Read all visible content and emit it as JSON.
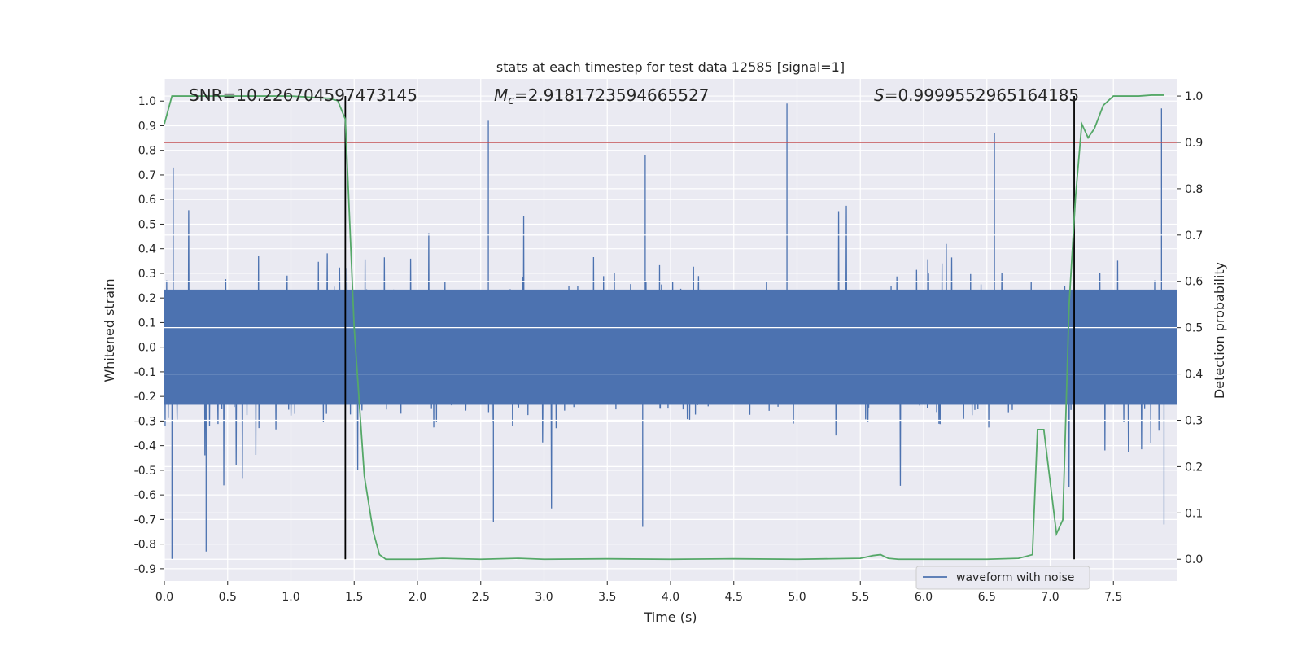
{
  "chart_data": {
    "type": "line",
    "title": "stats at each timestep for test data 12585 [signal=1]",
    "xlabel": "Time (s)",
    "ylabel": "Whitened strain",
    "y2label": "Detection probability",
    "xlim": [
      0.0,
      8.0
    ],
    "ylim": [
      -0.95,
      1.09
    ],
    "y2lim": [
      -0.047,
      1.037
    ],
    "x_ticks": [
      "0.0",
      "0.5",
      "1.0",
      "1.5",
      "2.0",
      "2.5",
      "3.0",
      "3.5",
      "4.0",
      "4.5",
      "5.0",
      "5.5",
      "6.0",
      "6.5",
      "7.0",
      "7.5"
    ],
    "y_ticks": [
      "1.0",
      "0.9",
      "0.8",
      "0.7",
      "0.6",
      "0.5",
      "0.4",
      "0.3",
      "0.2",
      "0.1",
      "0.0",
      "-0.1",
      "-0.2",
      "-0.3",
      "-0.4",
      "-0.5",
      "-0.6",
      "-0.7",
      "-0.8",
      "-0.9"
    ],
    "y2_ticks": [
      "1.0",
      "0.9",
      "0.8",
      "0.7",
      "0.6",
      "0.5",
      "0.4",
      "0.3",
      "0.2",
      "0.1",
      "0.0"
    ],
    "grid": true,
    "legend_position": "lower-right",
    "annotations": {
      "snr": "SNR=10.226704597473145",
      "mc_symbol": "M",
      "mc_sub": "c",
      "mc_value": "=2.9181723594665527",
      "s_symbol": "S",
      "s_value": "=0.9999552965164185"
    },
    "series": [
      {
        "name": "waveform with noise",
        "axis": "left",
        "color": "#4c72b0",
        "style": "dense-noise",
        "envelope_typical": [
          -0.3,
          0.3
        ],
        "spikes": [
          {
            "x": 0.07,
            "y": 0.73
          },
          {
            "x": 0.06,
            "y": -0.86
          },
          {
            "x": 0.33,
            "y": -0.83
          },
          {
            "x": 1.43,
            "y": 0.95
          },
          {
            "x": 1.43,
            "y": -0.61
          },
          {
            "x": 2.56,
            "y": 0.92
          },
          {
            "x": 2.6,
            "y": -0.71
          },
          {
            "x": 3.8,
            "y": 0.78
          },
          {
            "x": 3.78,
            "y": -0.73
          },
          {
            "x": 4.92,
            "y": 0.99
          },
          {
            "x": 6.56,
            "y": 0.87
          },
          {
            "x": 7.88,
            "y": 0.97
          },
          {
            "x": 7.9,
            "y": -0.72
          }
        ]
      },
      {
        "name": "detection probability",
        "axis": "right",
        "color": "#55a868",
        "x": [
          0.0,
          0.06,
          0.2,
          0.5,
          1.0,
          1.3,
          1.37,
          1.43,
          1.5,
          1.58,
          1.65,
          1.7,
          1.75,
          1.8,
          2.0,
          2.2,
          2.5,
          2.8,
          3.0,
          3.5,
          4.0,
          4.5,
          5.0,
          5.5,
          5.6,
          5.66,
          5.72,
          5.8,
          6.0,
          6.5,
          6.75,
          6.86,
          6.9,
          6.95,
          7.05,
          7.1,
          7.15,
          7.2,
          7.25,
          7.3,
          7.35,
          7.42,
          7.5,
          7.6,
          7.7,
          7.8,
          7.9
        ],
        "y": [
          0.94,
          1.0,
          1.0,
          1.0,
          1.0,
          0.995,
          0.99,
          0.95,
          0.5,
          0.18,
          0.06,
          0.01,
          0.0,
          0.0,
          0.0,
          0.002,
          0.0,
          0.002,
          0.0,
          0.001,
          0.0,
          0.001,
          0.0,
          0.002,
          0.008,
          0.01,
          0.002,
          0.0,
          0.0,
          0.0,
          0.002,
          0.01,
          0.28,
          0.28,
          0.055,
          0.085,
          0.55,
          0.78,
          0.94,
          0.91,
          0.93,
          0.98,
          1.0,
          1.0,
          1.0,
          1.002,
          1.002
        ]
      }
    ],
    "threshold_line": {
      "axis": "right",
      "y": 0.9,
      "color": "#c44e52"
    },
    "vertical_markers": [
      {
        "x": 1.43,
        "color": "#000000"
      },
      {
        "x": 7.19,
        "color": "#000000"
      }
    ]
  }
}
